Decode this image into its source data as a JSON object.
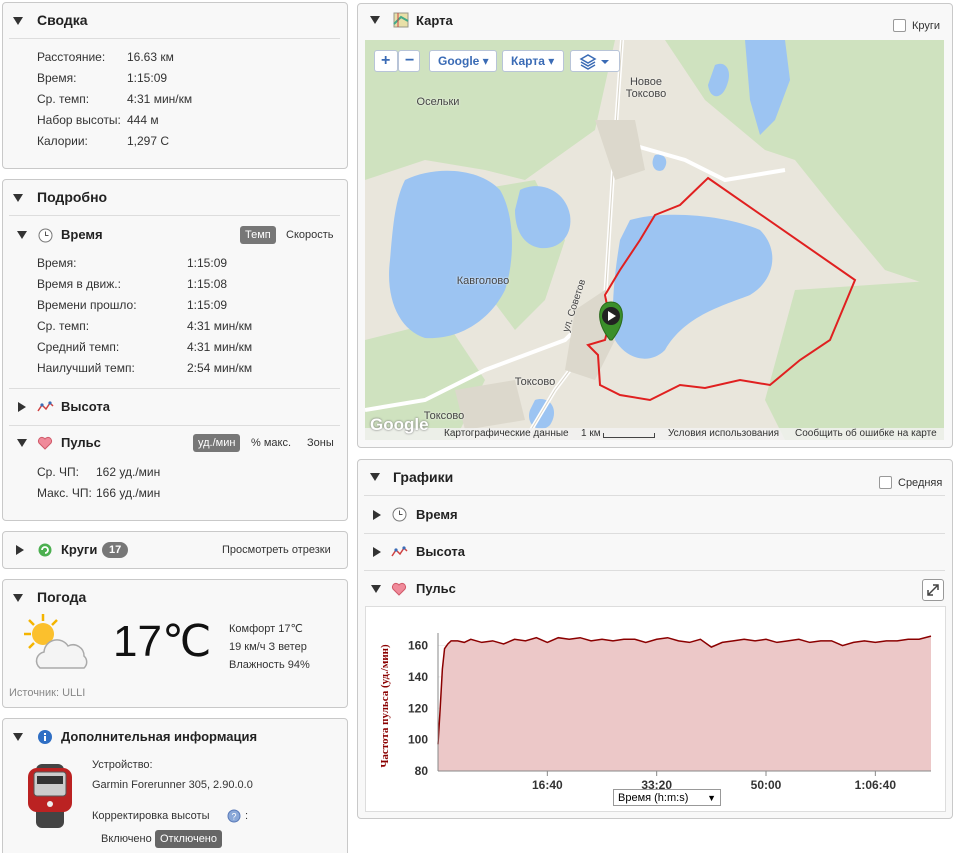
{
  "summary": {
    "title": "Сводка",
    "rows": [
      {
        "label": "Расстояние:",
        "value": "16.63 км"
      },
      {
        "label": "Время:",
        "value": "1:15:09"
      },
      {
        "label": "Ср. темп:",
        "value": "4:31 мин/км"
      },
      {
        "label": "Набор высоты:",
        "value": "444 м"
      },
      {
        "label": "Калории:",
        "value": "1,297 С"
      }
    ]
  },
  "details": {
    "title": "Подробно",
    "time": {
      "title": "Время",
      "tabs": [
        "Темп",
        "Скорость"
      ],
      "rows": [
        {
          "label": "Время:",
          "value": "1:15:09"
        },
        {
          "label": "Время в движ.:",
          "value": "1:15:08"
        },
        {
          "label": "Времени прошло:",
          "value": "1:15:09"
        },
        {
          "label": "Ср. темп:",
          "value": "4:31 мин/км"
        },
        {
          "label": "Средний темп:",
          "value": "4:31 мин/км"
        },
        {
          "label": "Наилучший темп:",
          "value": "2:54 мин/км"
        }
      ]
    },
    "elevation": {
      "title": "Высота"
    },
    "hr": {
      "title": "Пульс",
      "tabs": [
        "уд./мин",
        "% макс.",
        "Зоны"
      ],
      "rows": [
        {
          "label": "Ср. ЧП:",
          "value": "162 уд./мин"
        },
        {
          "label": "Макс. ЧП:",
          "value": "166 уд./мин"
        }
      ]
    }
  },
  "laps": {
    "title": "Круги",
    "count": "17",
    "link": "Просмотреть отрезки"
  },
  "weather": {
    "title": "Погода",
    "temp": "17℃",
    "lines": [
      "Комфорт 17℃",
      "19 км/ч З ветер",
      "Влажность 94%"
    ],
    "source": "Источник: ULLI"
  },
  "info": {
    "title": "Дополнительная информация",
    "device_label": "Устройство:",
    "device": "Garmin Forerunner 305, 2.90.0.0",
    "elev_label": "Корректировка высоты",
    "elev_colon": ":",
    "options": [
      "Включено",
      "Отключено"
    ]
  },
  "map": {
    "title": "Карта",
    "checkbox": "Круги",
    "buttons": [
      "Google",
      "Карта"
    ],
    "places": [
      "Осельки",
      "Новое Токсово",
      "Кавголово",
      "Токсово",
      "Токсово",
      "ул. Советов"
    ],
    "logo": "Google",
    "attribution": [
      "Картографические данные",
      "1 км",
      "Условия использования",
      "Сообщить об ошибке на карте"
    ]
  },
  "charts_panel": {
    "title": "Графики",
    "checkbox": "Средняя",
    "sections": [
      "Время",
      "Высота",
      "Пульс"
    ]
  },
  "chart_data": {
    "type": "line",
    "ylabel": "Частота пульса (уд./мин)",
    "xlabel": "Время (h:m:s)",
    "x": [
      0,
      20,
      40,
      60,
      90,
      120,
      180,
      240,
      300,
      400,
      500,
      600,
      700,
      800,
      900,
      1000,
      1100,
      1200,
      1300,
      1400,
      1500,
      1600,
      1700,
      1800,
      1900,
      2000,
      2100,
      2200,
      2300,
      2400,
      2500,
      2600,
      2700,
      2800,
      2900,
      3000,
      3100,
      3200,
      3300,
      3400,
      3500,
      3600,
      3700,
      3800,
      3900,
      4000,
      4100,
      4200,
      4300,
      4400,
      4509
    ],
    "values": [
      97,
      120,
      145,
      158,
      161,
      163,
      163,
      162,
      164,
      162,
      163,
      161,
      164,
      163,
      165,
      162,
      165,
      164,
      165,
      163,
      164,
      163,
      164,
      164,
      162,
      164,
      165,
      163,
      162,
      164,
      159,
      162,
      163,
      164,
      163,
      164,
      162,
      163,
      164,
      162,
      163,
      163,
      160,
      162,
      163,
      162,
      163,
      163,
      164,
      164,
      166
    ],
    "color": "#8b0000",
    "fill": "#ecc8c8",
    "xlim": [
      0,
      4509
    ],
    "ylim": [
      80,
      168
    ],
    "yticks": [
      80,
      100,
      120,
      140,
      160
    ],
    "xticks": [
      {
        "value": 1000,
        "label": "16:40"
      },
      {
        "value": 2000,
        "label": "33:20"
      },
      {
        "value": 3000,
        "label": "50:00"
      },
      {
        "value": 4000,
        "label": "1:06:40"
      }
    ],
    "grid": true
  }
}
